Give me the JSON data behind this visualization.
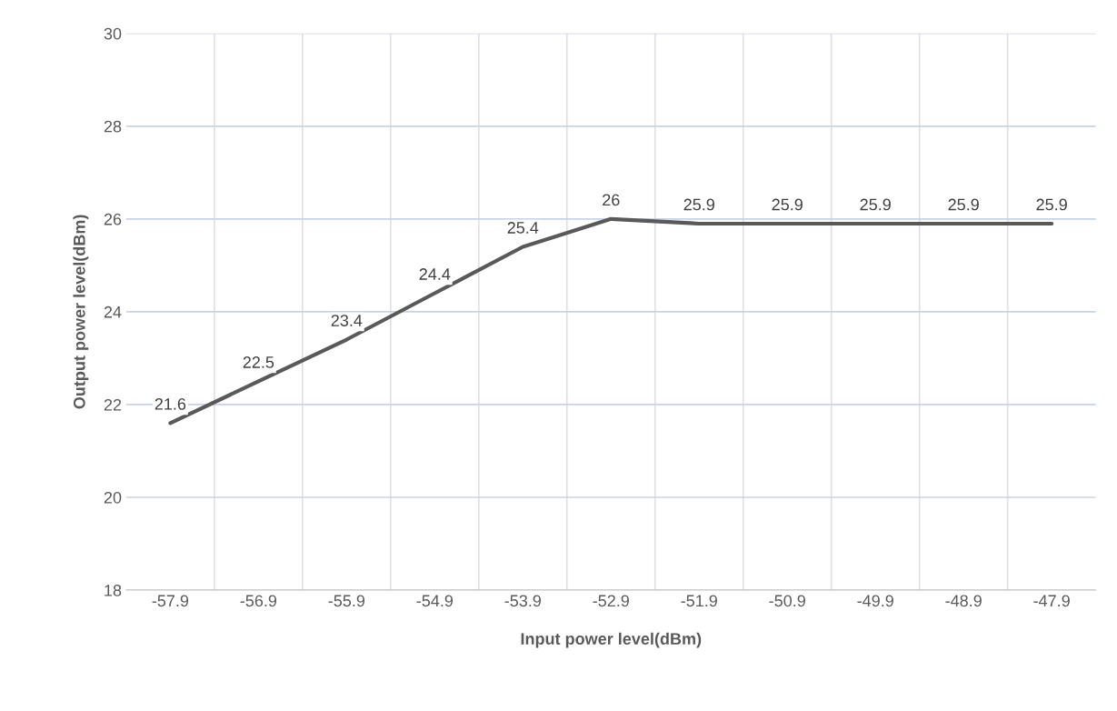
{
  "chart_data": {
    "type": "line",
    "xlabel": "Input power level(dBm)",
    "ylabel": "Output power level(dBm)",
    "categories": [
      "-57.9",
      "-56.9",
      "-55.9",
      "-54.9",
      "-53.9",
      "-52.9",
      "-51.9",
      "-50.9",
      "-49.9",
      "-48.9",
      "-47.9"
    ],
    "series": [
      {
        "color": "#595959",
        "values": [
          21.6,
          22.5,
          23.4,
          24.4,
          25.4,
          26,
          25.9,
          25.9,
          25.9,
          25.9,
          25.9
        ]
      }
    ],
    "ylim": [
      18,
      30
    ],
    "yticks": [
      18,
      20,
      22,
      24,
      26,
      28,
      30
    ],
    "grid": true,
    "data_labels": true,
    "marker": "none",
    "line_style": "solid"
  }
}
